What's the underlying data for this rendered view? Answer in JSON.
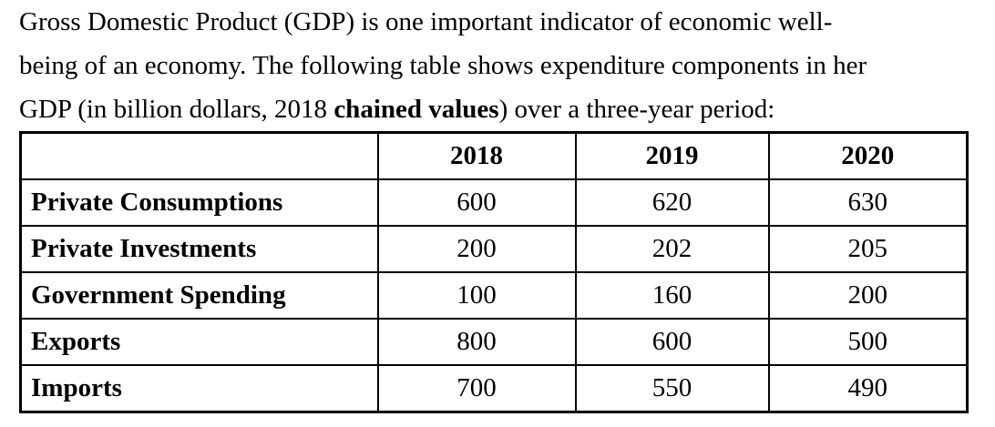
{
  "intro": {
    "lines": [
      "Gross Domestic Product (GDP) is one important indicator of economic well-",
      "being of an economy. The following table shows expenditure components in her"
    ],
    "line3": {
      "pre": "GDP (in billion dollars, 2018 ",
      "bold": "chained values",
      "post": ") over a three-year period:"
    }
  },
  "table": {
    "columns": [
      "",
      "2018",
      "2019",
      "2020"
    ],
    "rows": [
      {
        "label": "Private Consumptions",
        "values": [
          "600",
          "620",
          "630"
        ]
      },
      {
        "label": "Private Investments",
        "values": [
          "200",
          "202",
          "205"
        ]
      },
      {
        "label": "Government Spending",
        "values": [
          "100",
          "160",
          "200"
        ]
      },
      {
        "label": "Exports",
        "values": [
          "800",
          "600",
          "500"
        ]
      },
      {
        "label": "Imports",
        "values": [
          "700",
          "550",
          "490"
        ]
      }
    ]
  }
}
